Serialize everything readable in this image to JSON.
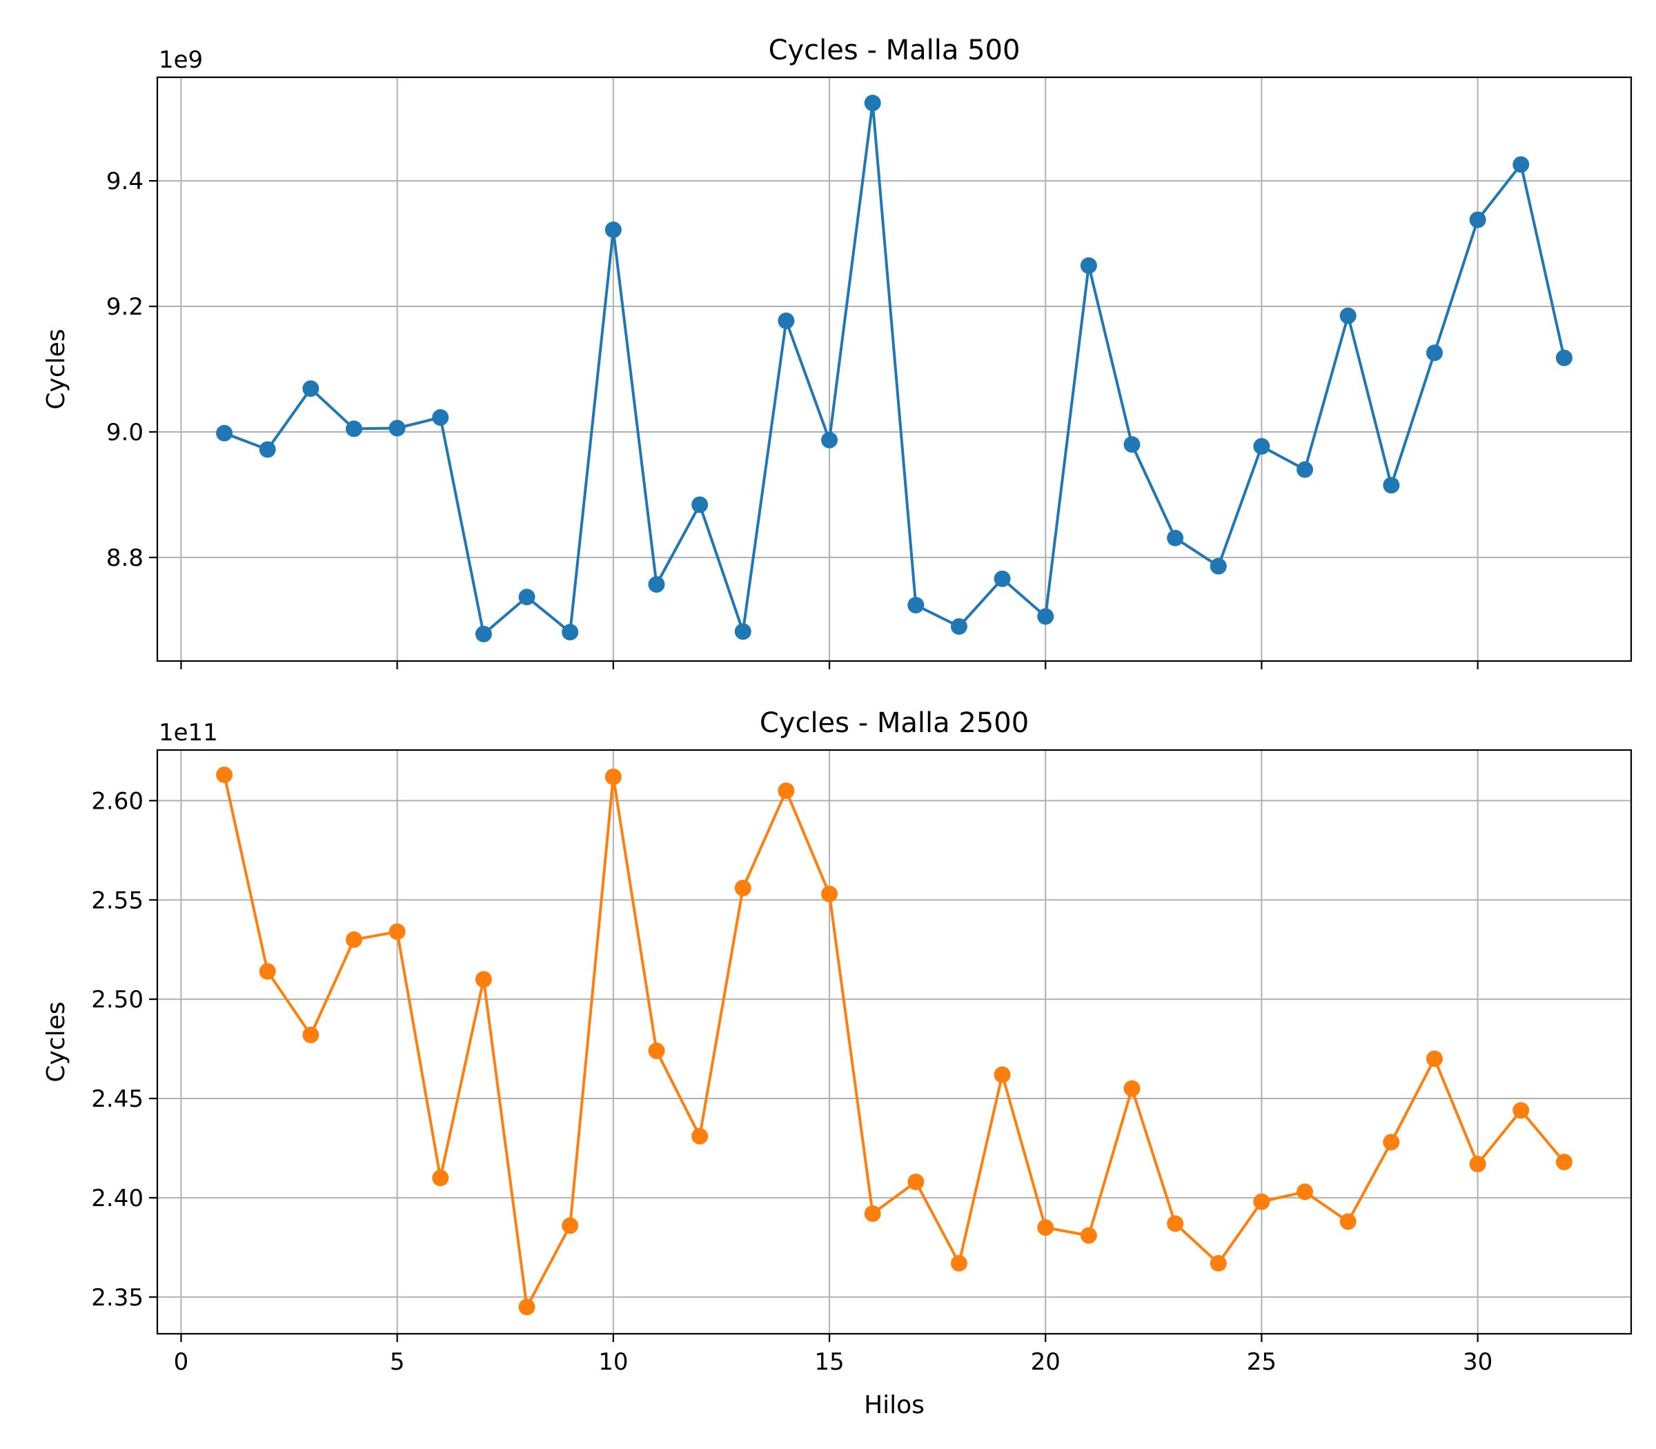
{
  "chart_data": [
    {
      "type": "line",
      "title": "Cycles - Malla 500",
      "xlabel": "",
      "ylabel": "Cycles",
      "offset_text": "1e9",
      "color": "#1f77b4",
      "xlim": [
        -0.55,
        33.55
      ],
      "ylim": [
        8.635,
        9.565
      ],
      "xticks": [
        0,
        5,
        10,
        15,
        20,
        25,
        30
      ],
      "xtick_labels": [],
      "yticks": [
        8.8,
        9.0,
        9.2,
        9.4
      ],
      "ytick_labels": [
        "8.8",
        "9.0",
        "9.2",
        "9.4"
      ],
      "grid": true,
      "x": [
        1,
        2,
        3,
        4,
        5,
        6,
        7,
        8,
        9,
        10,
        11,
        12,
        13,
        14,
        15,
        16,
        17,
        18,
        19,
        20,
        21,
        22,
        23,
        24,
        25,
        26,
        27,
        28,
        29,
        30,
        31,
        32
      ],
      "y": [
        8.998,
        8.972,
        9.069,
        9.005,
        9.006,
        9.023,
        8.678,
        8.737,
        8.681,
        9.322,
        8.757,
        8.884,
        8.682,
        9.177,
        8.987,
        9.524,
        8.724,
        8.69,
        8.766,
        8.706,
        9.265,
        8.98,
        8.831,
        8.786,
        8.977,
        8.94,
        9.185,
        8.915,
        9.126,
        9.338,
        9.426,
        9.118
      ]
    },
    {
      "type": "line",
      "title": "Cycles - Malla 2500",
      "xlabel": "Hilos",
      "ylabel": "Cycles",
      "offset_text": "1e11",
      "color": "#ff7f0e",
      "xlim": [
        -0.55,
        33.55
      ],
      "ylim": [
        2.3315,
        2.6255
      ],
      "xticks": [
        0,
        5,
        10,
        15,
        20,
        25,
        30
      ],
      "xtick_labels": [
        "0",
        "5",
        "10",
        "15",
        "20",
        "25",
        "30"
      ],
      "yticks": [
        2.35,
        2.4,
        2.45,
        2.5,
        2.55,
        2.6
      ],
      "ytick_labels": [
        "2.35",
        "2.40",
        "2.45",
        "2.50",
        "2.55",
        "2.60"
      ],
      "grid": true,
      "x": [
        1,
        2,
        3,
        4,
        5,
        6,
        7,
        8,
        9,
        10,
        11,
        12,
        13,
        14,
        15,
        16,
        17,
        18,
        19,
        20,
        21,
        22,
        23,
        24,
        25,
        26,
        27,
        28,
        29,
        30,
        31,
        32
      ],
      "y": [
        2.613,
        2.514,
        2.482,
        2.53,
        2.534,
        2.41,
        2.51,
        2.345,
        2.386,
        2.612,
        2.474,
        2.431,
        2.556,
        2.605,
        2.553,
        2.392,
        2.408,
        2.367,
        2.462,
        2.385,
        2.381,
        2.455,
        2.387,
        2.367,
        2.398,
        2.403,
        2.388,
        2.428,
        2.47,
        2.417,
        2.444,
        2.418
      ]
    }
  ]
}
